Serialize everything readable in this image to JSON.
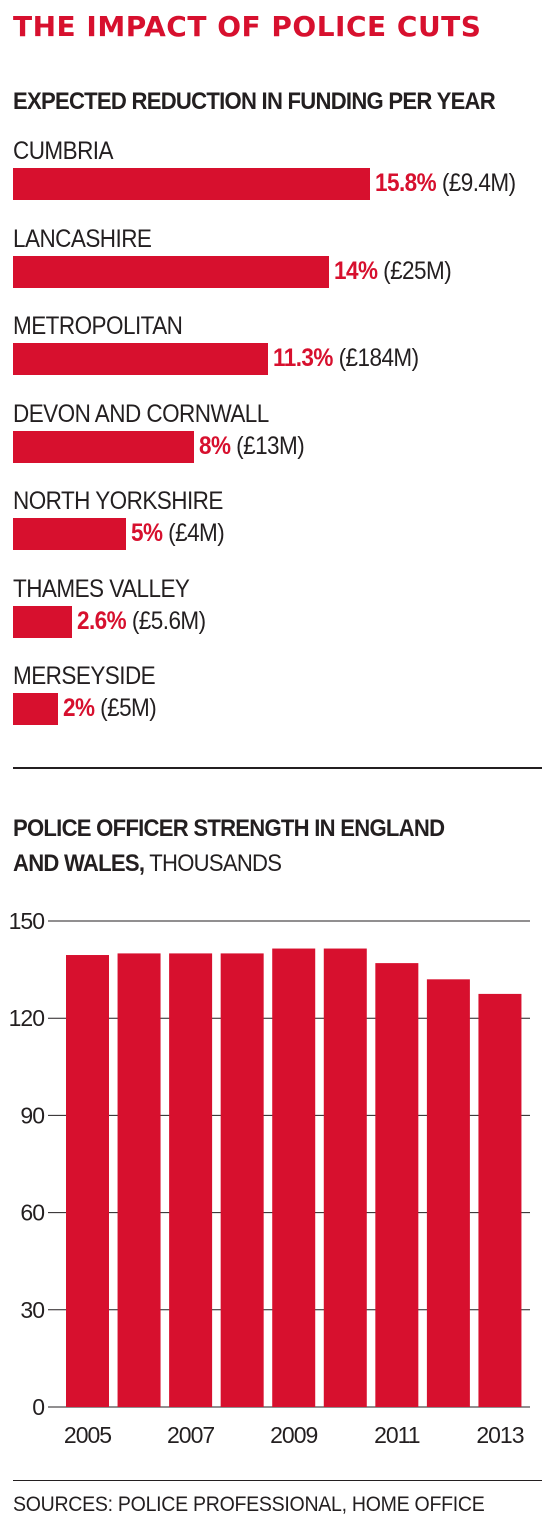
{
  "title": "THE IMPACT OF POLICE CUTS",
  "colors": {
    "accent": "#d7102e",
    "text": "#231f20",
    "grid": "#231f20"
  },
  "chart_data": [
    {
      "type": "bar",
      "orientation": "horizontal",
      "title": "EXPECTED REDUCTION IN FUNDING PER YEAR",
      "categories": [
        "CUMBRIA",
        "LANCASHIRE",
        "METROPOLITAN",
        "DEVON AND CORNWALL",
        "NORTH YORKSHIRE",
        "THAMES VALLEY",
        "MERSEYSIDE"
      ],
      "values": [
        15.8,
        14,
        11.3,
        8,
        5,
        2.6,
        2
      ],
      "value_labels": [
        "15.8%",
        "14%",
        "11.3%",
        "8%",
        "5%",
        "2.6%",
        "2%"
      ],
      "amount_labels": [
        "(£9.4M)",
        "(£25M)",
        "(£184M)",
        "(£13M)",
        "(£4M)",
        "(£5.6M)",
        "(£5M)"
      ]
    },
    {
      "type": "bar",
      "title": "POLICE OFFICER STRENGTH IN ENGLAND",
      "title_line2": "AND WALES,",
      "title_unit": " THOUSANDS",
      "x": [
        2005,
        2006,
        2007,
        2008,
        2009,
        2010,
        2011,
        2012,
        2013
      ],
      "values": [
        139.5,
        140,
        140,
        140,
        141.5,
        141.5,
        137,
        132,
        127.5
      ],
      "x_tick_labels": [
        "2005",
        "2007",
        "2009",
        "2011",
        "2013"
      ],
      "y_ticks": [
        "0",
        "30",
        "60",
        "90",
        "120",
        "150"
      ],
      "ylim": [
        0,
        150
      ],
      "grid": true
    }
  ],
  "sources": "SOURCES: POLICE PROFESSIONAL, HOME OFFICE"
}
